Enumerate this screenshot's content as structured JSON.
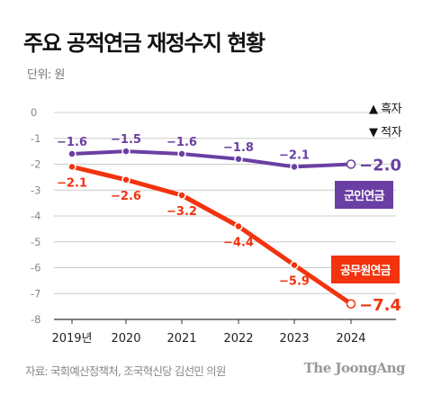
{
  "title": "주요 공적연금 재정수지 현황",
  "unit_label": "단위: 원",
  "legend": {
    "surplus": "▲ 흑자",
    "deficit": "▼ 적자"
  },
  "source": "자료: 국회예산정책처, 조국혁신당 김선민 의원",
  "brand": "The JoongAng",
  "colors": {
    "military": "#6a3fa3",
    "public": "#f2330e",
    "grid": "#cccccc",
    "axis": "#333333"
  },
  "chart_data": {
    "type": "line",
    "categories": [
      "2019년",
      "2020",
      "2021",
      "2022",
      "2023",
      "2024"
    ],
    "yticks": [
      "0",
      "-1",
      "-2",
      "-3",
      "-4",
      "-5",
      "-6",
      "-7",
      "-8"
    ],
    "ylim": [
      -8,
      0
    ],
    "grid": true,
    "series": [
      {
        "name": "군인연금",
        "key": "military",
        "values": [
          -1.6,
          -1.5,
          -1.6,
          -1.8,
          -2.1,
          -2.0
        ],
        "labels": [
          "−1.6",
          "−1.5",
          "−1.6",
          "−1.8",
          "−2.1",
          "−2.0"
        ]
      },
      {
        "name": "공무원연금",
        "key": "public",
        "values": [
          -2.1,
          -2.6,
          -3.2,
          -4.4,
          -5.9,
          -7.4
        ],
        "labels": [
          "−2.1",
          "−2.6",
          "−3.2",
          "−4.4",
          "−5.9",
          "−7.4"
        ]
      }
    ]
  }
}
